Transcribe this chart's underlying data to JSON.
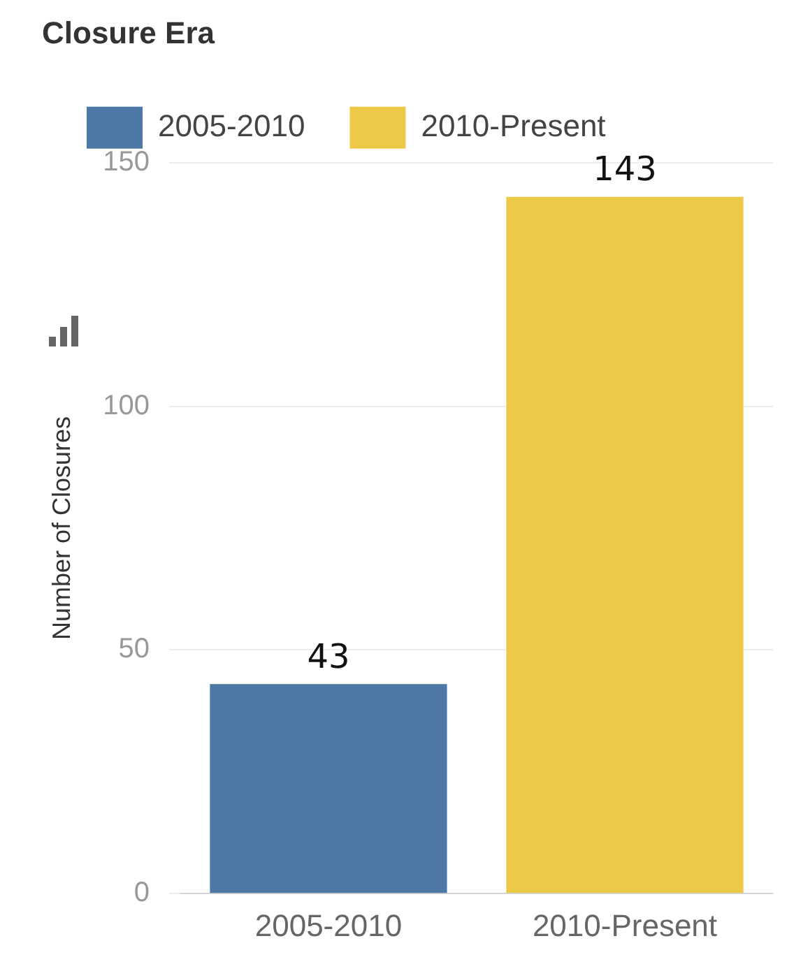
{
  "chart_data": {
    "type": "bar",
    "legend_title": "Closure Era",
    "ylabel": "Number of Closures",
    "categories": [
      "2005-2010",
      "2010-Present"
    ],
    "series": [
      {
        "name": "2005-2010",
        "color": "#4e79a7",
        "values": [
          43,
          null
        ]
      },
      {
        "name": "2010-Present",
        "color": "#edc948",
        "values": [
          null,
          143
        ]
      }
    ],
    "ylim": [
      0,
      150
    ],
    "yticks": [
      0,
      50,
      100,
      150
    ],
    "grid": "y",
    "legend": "top left",
    "data_labels": true
  }
}
